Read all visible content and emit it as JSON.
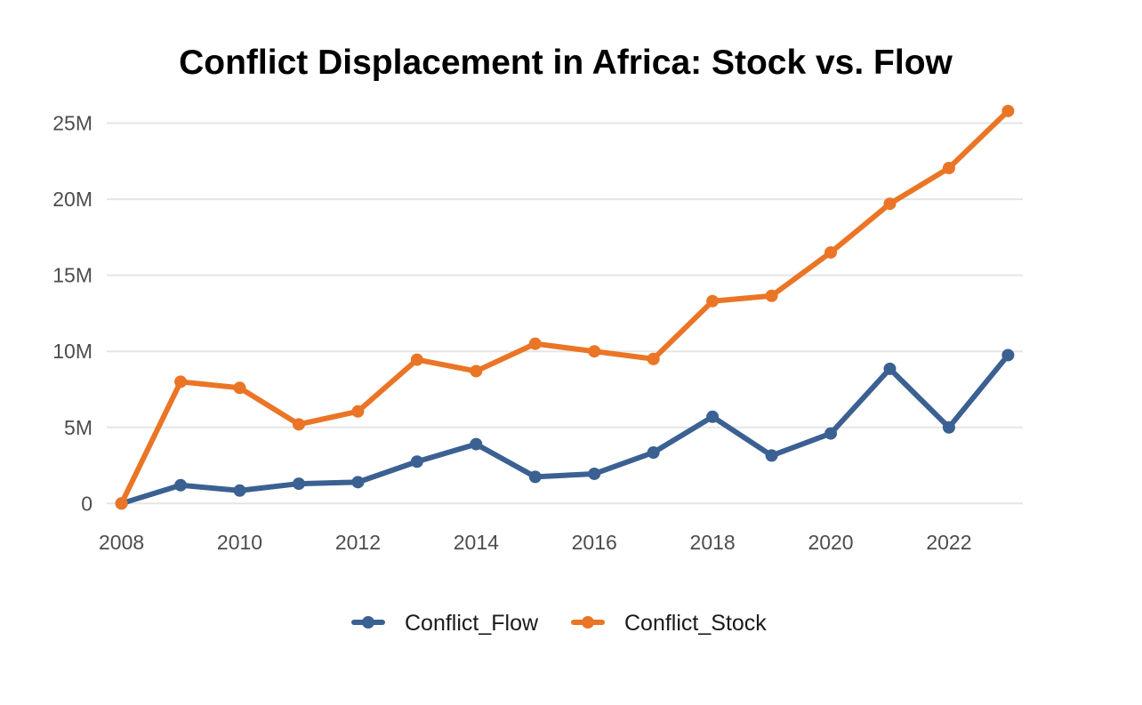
{
  "chart_data": {
    "type": "line",
    "title": "Conflict Displacement in Africa: Stock vs. Flow",
    "xlabel": "",
    "ylabel": "",
    "x": [
      2008,
      2009,
      2010,
      2011,
      2012,
      2013,
      2014,
      2015,
      2016,
      2017,
      2018,
      2019,
      2020,
      2021,
      2022,
      2023
    ],
    "x_ticks": [
      {
        "value": 2008,
        "label": "2008"
      },
      {
        "value": 2010,
        "label": "2010"
      },
      {
        "value": 2012,
        "label": "2012"
      },
      {
        "value": 2014,
        "label": "2014"
      },
      {
        "value": 2016,
        "label": "2016"
      },
      {
        "value": 2018,
        "label": "2018"
      },
      {
        "value": 2020,
        "label": "2020"
      },
      {
        "value": 2022,
        "label": "2022"
      }
    ],
    "y_ticks": [
      {
        "value": 0,
        "label": "0"
      },
      {
        "value": 5000000,
        "label": "5M"
      },
      {
        "value": 10000000,
        "label": "10M"
      },
      {
        "value": 15000000,
        "label": "15M"
      },
      {
        "value": 20000000,
        "label": "20M"
      },
      {
        "value": 25000000,
        "label": "25M"
      }
    ],
    "xlim": [
      2007.75,
      2023.25
    ],
    "ylim": [
      -800000,
      26200000
    ],
    "grid": true,
    "legend_position": "bottom",
    "series": [
      {
        "name": "Conflict_Flow",
        "color": "#3b6092",
        "values": [
          0,
          1200000,
          850000,
          1300000,
          1400000,
          2750000,
          3900000,
          1750000,
          1950000,
          3350000,
          5700000,
          3150000,
          4600000,
          8850000,
          5000000,
          9750000
        ]
      },
      {
        "name": "Conflict_Stock",
        "color": "#ea7526",
        "values": [
          0,
          8000000,
          7600000,
          5200000,
          6050000,
          9450000,
          8700000,
          10500000,
          10000000,
          9500000,
          13300000,
          13650000,
          16500000,
          19700000,
          22050000,
          25800000
        ]
      }
    ]
  }
}
